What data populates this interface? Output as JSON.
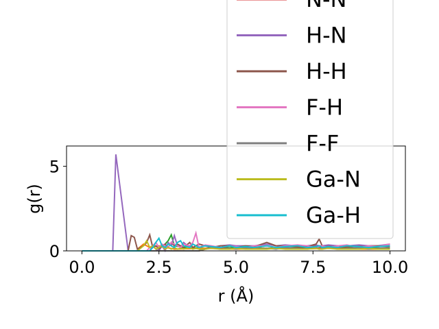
{
  "chart_data": {
    "type": "line",
    "xlabel": "r (Å)",
    "ylabel": "g(r)",
    "xlim": [
      -0.5,
      10.5
    ],
    "ylim": [
      0,
      6.2
    ],
    "xticks": [
      0.0,
      2.5,
      5.0,
      7.5,
      10.0
    ],
    "xtick_labels": [
      "0.0",
      "2.5",
      "5.0",
      "7.5",
      "10.0"
    ],
    "yticks": [
      0,
      5
    ],
    "ytick_labels": [
      "0",
      "5"
    ],
    "grid": false,
    "legend_position": "upper-right (overflowing above the axes)",
    "x": [
      0.0,
      0.5,
      0.9,
      1.0,
      1.1,
      1.5,
      1.6,
      1.7,
      1.8,
      2.0,
      2.1,
      2.2,
      2.3,
      2.4,
      2.5,
      2.6,
      2.7,
      2.8,
      2.9,
      3.0,
      3.1,
      3.2,
      3.3,
      3.5,
      3.6,
      3.7,
      3.8,
      4.0,
      4.2,
      4.5,
      4.8,
      5.0,
      5.3,
      5.6,
      6.0,
      6.3,
      6.6,
      7.0,
      7.3,
      7.6,
      7.7,
      7.8,
      8.0,
      8.3,
      8.6,
      9.0,
      9.3,
      9.6,
      10.0
    ],
    "series": [
      {
        "name": "N-N",
        "color": "#d62728",
        "values": [
          0,
          0,
          0,
          0,
          0,
          0,
          0,
          0,
          0,
          0,
          0,
          0,
          0,
          0,
          0,
          0,
          0,
          0,
          0,
          0,
          0,
          0,
          0,
          0,
          0,
          0,
          0,
          0.1,
          0.2,
          0.15,
          0.3,
          0.2,
          0.25,
          0.2,
          0.3,
          0.2,
          0.3,
          0.25,
          0.2,
          0.3,
          0.25,
          0.2,
          0.3,
          0.2,
          0.25,
          0.3,
          0.2,
          0.25,
          0.3
        ]
      },
      {
        "name": "H-N",
        "color": "#9467bd",
        "values": [
          0,
          0,
          0,
          0,
          5.7,
          0,
          0,
          0,
          0,
          0,
          0,
          0,
          0.3,
          0.1,
          0,
          0.3,
          0,
          0.5,
          0.3,
          0.9,
          0.3,
          0.2,
          0.5,
          0.2,
          0.4,
          0.3,
          0.2,
          0.3,
          0.2,
          0.3,
          0.35,
          0.3,
          0.3,
          0.3,
          0.4,
          0.3,
          0.35,
          0.3,
          0.3,
          0.35,
          0.3,
          0.3,
          0.35,
          0.3,
          0.3,
          0.35,
          0.3,
          0.3,
          0.4
        ]
      },
      {
        "name": "H-H",
        "color": "#8c564b",
        "values": [
          0,
          0,
          0,
          0,
          0,
          0,
          0.9,
          0.8,
          0.1,
          0.3,
          0.5,
          0.95,
          0.2,
          0.3,
          0.1,
          0.3,
          0.4,
          0.2,
          0.5,
          0.3,
          0.4,
          0.3,
          0.2,
          0.5,
          0.2,
          0.3,
          0.4,
          0.3,
          0.2,
          0.3,
          0.3,
          0.2,
          0.3,
          0.25,
          0.5,
          0.3,
          0.3,
          0.3,
          0.25,
          0.4,
          0.7,
          0.3,
          0.2,
          0.3,
          0.3,
          0.2,
          0.3,
          0.3,
          0.25
        ]
      },
      {
        "name": "F-H",
        "color": "#e377c2",
        "values": [
          0,
          0,
          0,
          0,
          0,
          0,
          0,
          0,
          0,
          0,
          0,
          0.2,
          0.3,
          0.5,
          0.2,
          0.4,
          0.3,
          0.2,
          0.5,
          0.4,
          0.3,
          0.2,
          0.4,
          0.3,
          0.5,
          1.05,
          0.2,
          0.35,
          0.3,
          0.2,
          0.3,
          0.25,
          0.2,
          0.3,
          0.3,
          0.2,
          0.3,
          0.35,
          0.3,
          0.2,
          0.25,
          0.3,
          0.2,
          0.3,
          0.35,
          0.2,
          0.3,
          0.25,
          0.4
        ]
      },
      {
        "name": "F-F",
        "color": "#7f7f7f",
        "values": [
          0,
          0,
          0,
          0,
          0,
          0,
          0,
          0,
          0,
          0,
          0,
          0,
          0,
          0,
          0,
          0,
          0,
          0,
          0,
          0,
          0,
          0,
          0,
          0,
          0,
          0,
          0,
          0.1,
          0.2,
          0.1,
          0.15,
          0.1,
          0.2,
          0.1,
          0.15,
          0.1,
          0.2,
          0.15,
          0.1,
          0.2,
          0.1,
          0.15,
          0.2,
          0.1,
          0.15,
          0.2,
          0.1,
          0.15,
          0.2
        ]
      },
      {
        "name": "Ga-N",
        "color": "#bcbd22",
        "values": [
          0,
          0,
          0,
          0,
          0,
          0,
          0,
          0,
          0,
          0.3,
          0.6,
          0.2,
          0.3,
          0.1,
          0.2,
          0.3,
          0.1,
          0.2,
          0.1,
          0.2,
          0.1,
          0.15,
          0.1,
          0.2,
          0.1,
          0.15,
          0.1,
          0.1,
          0.15,
          0.1,
          0.1,
          0.15,
          0.1,
          0.1,
          0.1,
          0.15,
          0.1,
          0.1,
          0.1,
          0.15,
          0.1,
          0.1,
          0.15,
          0.1,
          0.1,
          0.1,
          0.15,
          0.1,
          0.1
        ]
      },
      {
        "name": "Ga-H",
        "color": "#17becf",
        "values": [
          0,
          0,
          0,
          0,
          0,
          0,
          0,
          0,
          0,
          0,
          0,
          0,
          0.2,
          0.5,
          0.75,
          0.3,
          0.2,
          0.4,
          0.3,
          0.2,
          0.5,
          0.6,
          0.3,
          0.2,
          0.4,
          0.3,
          0.2,
          0.3,
          0.25,
          0.2,
          0.3,
          0.2,
          0.25,
          0.2,
          0.3,
          0.2,
          0.25,
          0.3,
          0.2,
          0.25,
          0.3,
          0.2,
          0.25,
          0.2,
          0.3,
          0.25,
          0.2,
          0.25,
          0.3
        ]
      }
    ],
    "extra_series": [
      {
        "color": "#2ca02c",
        "points": [
          [
            2.6,
            0.2
          ],
          [
            2.8,
            0.6
          ],
          [
            2.9,
            0.95
          ],
          [
            3.0,
            0.3
          ],
          [
            3.3,
            0.2
          ],
          [
            4.0,
            0.15
          ],
          [
            5.0,
            0.2
          ],
          [
            6.0,
            0.15
          ],
          [
            7.0,
            0.2
          ],
          [
            8.0,
            0.15
          ],
          [
            9.0,
            0.2
          ],
          [
            10.0,
            0.15
          ]
        ]
      },
      {
        "color": "#ff7f0e",
        "points": [
          [
            1.8,
            0.1
          ],
          [
            2.0,
            0.4
          ],
          [
            2.2,
            0.2
          ],
          [
            2.5,
            0.3
          ],
          [
            3.0,
            0.1
          ],
          [
            4.0,
            0.15
          ],
          [
            5.0,
            0.1
          ],
          [
            6.0,
            0.15
          ],
          [
            7.0,
            0.1
          ],
          [
            8.0,
            0.15
          ],
          [
            9.0,
            0.1
          ],
          [
            10.0,
            0.1
          ]
        ]
      }
    ]
  }
}
